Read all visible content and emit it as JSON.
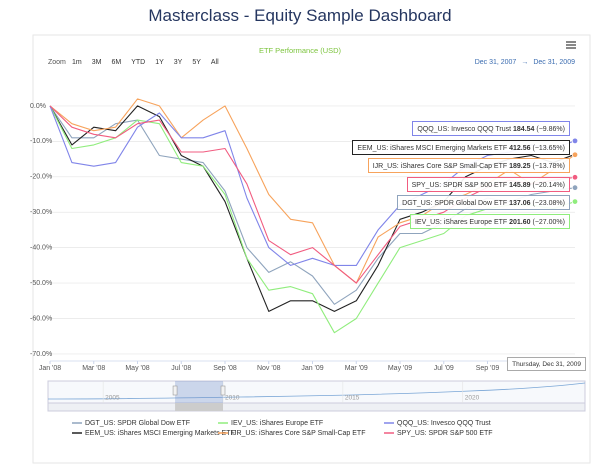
{
  "header": {
    "title": "Masterclass - Equity Sample Dashboard"
  },
  "chart_data": {
    "type": "line",
    "title": "ETF Performance (USD)",
    "zoom_label": "Zoom",
    "zoom_buttons": [
      "1m",
      "3M",
      "6M",
      "YTD",
      "1Y",
      "3Y",
      "5Y",
      "All"
    ],
    "range": [
      "Dec 31, 2007",
      "→",
      "Dec 31, 2009"
    ],
    "tooltip_date": "Thursday, Dec 31, 2009",
    "x": [
      0,
      1,
      2,
      3,
      4,
      5,
      6,
      7,
      8,
      9,
      10,
      11,
      12,
      13,
      14,
      15,
      16,
      17,
      18,
      19,
      20,
      21,
      22,
      23,
      24
    ],
    "xlim": [
      0,
      24
    ],
    "xticks": [
      {
        "value": 0,
        "label": "Jan '08"
      },
      {
        "value": 2,
        "label": "Mar '08"
      },
      {
        "value": 4,
        "label": "May '08"
      },
      {
        "value": 6,
        "label": "Jul '08"
      },
      {
        "value": 8,
        "label": "Sep '08"
      },
      {
        "value": 10,
        "label": "Nov '08"
      },
      {
        "value": 12,
        "label": "Jan '09"
      },
      {
        "value": 14,
        "label": "Mar '09"
      },
      {
        "value": 16,
        "label": "May '09"
      },
      {
        "value": 18,
        "label": "Jul '09"
      },
      {
        "value": 20,
        "label": "Sep '09"
      }
    ],
    "ylim": [
      -72,
      4.5
    ],
    "yticks": [
      {
        "value": 0,
        "label": "0.0%"
      },
      {
        "value": -10,
        "label": "-10.0%"
      },
      {
        "value": -20,
        "label": "-20.0%"
      },
      {
        "value": -30,
        "label": "-30.0%"
      },
      {
        "value": -40,
        "label": "-40.0%"
      },
      {
        "value": -50,
        "label": "-50.0%"
      },
      {
        "value": -60,
        "label": "-60.0%"
      },
      {
        "value": -70,
        "label": "-70.0%"
      }
    ],
    "grid": true,
    "series": [
      {
        "name": "DGT_US: SPDR Global Dow ETF",
        "color": "#8fa4bd",
        "price": 137.06,
        "end_label": "(−23.08%)",
        "values": [
          0,
          -9,
          -9,
          -5,
          -4,
          -14,
          -15,
          -16,
          -24,
          -40,
          -47,
          -44,
          -48,
          -56,
          -52,
          -43,
          -36,
          -36,
          -33,
          -29,
          -26,
          -27,
          -25,
          -24,
          -23.08
        ]
      },
      {
        "name": "EEM_US: iShares MSCI Emerging Markets ETF",
        "color": "#222222",
        "price": 412.56,
        "end_label": "(−13.65%)",
        "values": [
          0,
          -11,
          -6,
          -7,
          0,
          -3,
          -14,
          -17,
          -27,
          -43,
          -58,
          -55,
          -55,
          -58,
          -55,
          -45,
          -32,
          -30,
          -27,
          -20,
          -17,
          -15,
          -14,
          -16,
          -13.65
        ]
      },
      {
        "name": "IEV_US: iShares Europe ETF",
        "color": "#90ed7d",
        "price": {
          "value": 201.6,
          "label": "201.60"
        },
        "end_label": "(−27.00%)",
        "values": [
          0,
          -12,
          -11,
          -9,
          -4,
          -5,
          -16,
          -17,
          -25,
          -43,
          -52,
          -51,
          -53,
          -64,
          -60,
          -50,
          -40,
          -38,
          -36,
          -31,
          -29,
          -28,
          -28,
          -29,
          -27
        ]
      },
      {
        "name": "IJR_US: iShares Core S&P Small-Cap ETF",
        "color": "#f7a35c",
        "price": 189.25,
        "end_label": "(−13.78%)",
        "values": [
          0,
          -5,
          -7,
          -6,
          2,
          0,
          -9,
          -4,
          0,
          -12,
          -25,
          -32,
          -33,
          -45,
          -50,
          -37,
          -33,
          -31,
          -27,
          -25,
          -22,
          -18,
          -22,
          -18,
          -13.78
        ]
      },
      {
        "name": "QQQ_US: Invesco QQQ Trust",
        "color": "#8085e9",
        "price": 184.54,
        "end_label": "(−9.86%)",
        "values": [
          0,
          -16,
          -17,
          -16,
          -6,
          -2,
          -9,
          -9,
          -7,
          -26,
          -40,
          -45,
          -43,
          -45,
          -45,
          -35,
          -28,
          -25,
          -22,
          -17,
          -14,
          -13,
          -11,
          -12,
          -9.86
        ]
      },
      {
        "name": "SPY_US: SPDR S&P 500 ETF",
        "color": "#f15c80",
        "price": 145.89,
        "end_label": "(−20.14%)",
        "values": [
          0,
          -6,
          -8,
          -9,
          -5,
          -4,
          -13,
          -13,
          -12,
          -22,
          -38,
          -42,
          -40,
          -45,
          -50,
          -42,
          -34,
          -32,
          -30,
          -26,
          -23,
          -21,
          -22,
          -21,
          -20.14
        ]
      }
    ],
    "navigator": {
      "xlim": [
        2002.7,
        2025.1
      ],
      "xticks": [
        2005,
        2010,
        2015,
        2020
      ],
      "selected": [
        2008,
        2010
      ]
    }
  }
}
